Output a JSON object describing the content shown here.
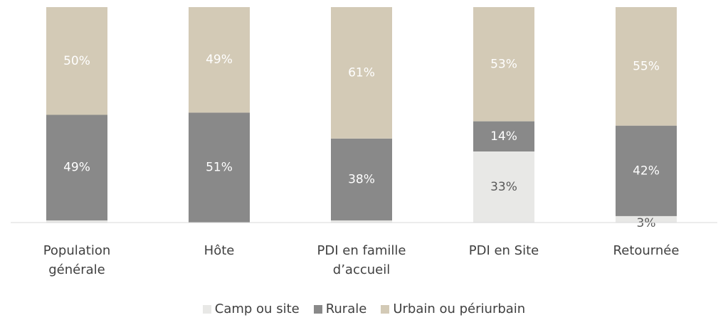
{
  "chart_data": {
    "type": "stacked_bar",
    "categories": [
      "Population générale",
      "Hôte",
      "PDI en famille d’accueil",
      "PDI en Site",
      "Retournée"
    ],
    "series": [
      {
        "name": "Camp ou site",
        "color": "#e8e8e6",
        "values": [
          1,
          0,
          1,
          33,
          3
        ],
        "value_labels": [
          null,
          null,
          null,
          "33%",
          "3%"
        ]
      },
      {
        "name": "Rurale",
        "color": "#898989",
        "values": [
          49,
          51,
          38,
          14,
          42
        ],
        "value_labels": [
          "49%",
          "51%",
          "38%",
          "14%",
          "42%"
        ]
      },
      {
        "name": "Urbain ou périurbain",
        "color": "#d3cab6",
        "values": [
          50,
          49,
          61,
          53,
          55
        ],
        "value_labels": [
          "50%",
          "49%",
          "61%",
          "53%",
          "55%"
        ]
      }
    ],
    "ylim": [
      0,
      100
    ],
    "legend": "bottom"
  }
}
